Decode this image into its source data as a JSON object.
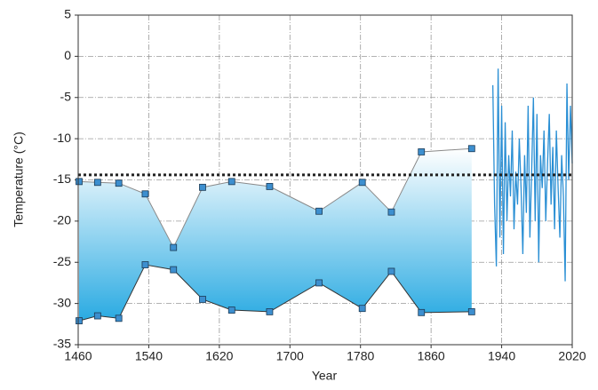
{
  "chart_data": {
    "type": "line",
    "x_label": "Year",
    "y_label": "Temperature (°C)",
    "xlim": [
      1460,
      2020
    ],
    "xticks": [
      1460,
      1540,
      1620,
      1700,
      1780,
      1860,
      1940,
      2020
    ],
    "ylim": [
      -35,
      5
    ],
    "yticks": [
      -35,
      -30,
      -25,
      -20,
      -15,
      -10,
      -5,
      0,
      5
    ],
    "grid": true,
    "band_fill": {
      "top": "#ffffff",
      "bottom": "#29aae2"
    },
    "reference_line": {
      "value": -14.4,
      "color": "#222222"
    },
    "series": [
      {
        "color": "#8a8a8a",
        "marker": "square",
        "marker_color": "#3d8fcf",
        "x": [
          1461,
          1482,
          1506,
          1536,
          1568,
          1601,
          1634,
          1677,
          1733,
          1782,
          1815,
          1849,
          1906
        ],
        "values": [
          -15.2,
          -15.3,
          -15.4,
          -16.7,
          -23.2,
          -15.9,
          -15.2,
          -15.8,
          -18.8,
          -15.3,
          -18.9,
          -11.6,
          -11.2
        ]
      },
      {
        "color": "#333333",
        "marker": "square",
        "marker_color": "#3d8fcf",
        "x": [
          1461,
          1482,
          1506,
          1536,
          1568,
          1601,
          1634,
          1677,
          1733,
          1782,
          1815,
          1849,
          1906
        ],
        "values": [
          -32.1,
          -31.5,
          -31.8,
          -25.3,
          -25.9,
          -29.5,
          -30.8,
          -31.0,
          -27.5,
          -30.6,
          -26.1,
          -31.1,
          -31.0
        ]
      },
      {
        "color": "#2a8fd4",
        "x": [
          1930,
          1932,
          1934,
          1936,
          1938,
          1940,
          1942,
          1944,
          1946,
          1948,
          1950,
          1952,
          1954,
          1956,
          1958,
          1960,
          1962,
          1964,
          1966,
          1968,
          1970,
          1972,
          1974,
          1976,
          1978,
          1980,
          1982,
          1984,
          1986,
          1988,
          1990,
          1992,
          1994,
          1996,
          1998,
          2000,
          2002,
          2004,
          2006,
          2008,
          2010,
          2012,
          2014,
          2016,
          2018,
          2020
        ],
        "values": [
          -3.5,
          -18,
          -25.5,
          -1.5,
          -22,
          -6,
          -24,
          -8,
          -20,
          -12,
          -17,
          -9,
          -21,
          -14,
          -18,
          -10,
          -16,
          -24,
          -12,
          -19,
          -6,
          -22,
          -14,
          -5,
          -20,
          -7,
          -25,
          -12,
          -16,
          -9,
          -20,
          -13,
          -7,
          -18,
          -11,
          -21,
          -9,
          -16,
          -22,
          -12,
          -17,
          -27.3,
          -3.3,
          -15,
          -6,
          -13
        ]
      }
    ]
  }
}
